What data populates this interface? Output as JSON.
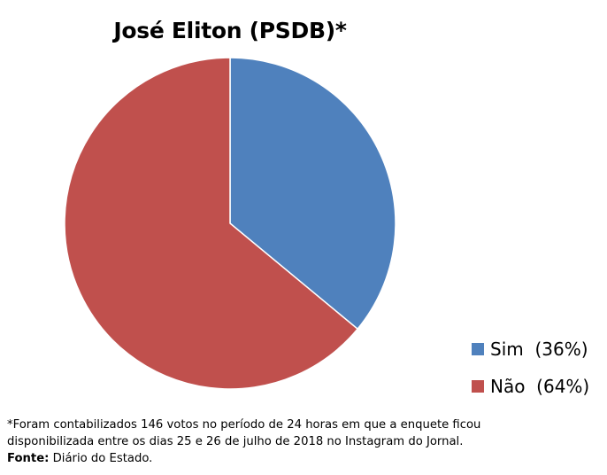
{
  "chart_data": {
    "type": "pie",
    "title": "José Eliton (PSDB)*",
    "slices": [
      {
        "label": "Sim  (36%)",
        "value": 36,
        "color": "#4f81bd"
      },
      {
        "label": "Não  (64%)",
        "value": 64,
        "color": "#c0504d"
      }
    ],
    "legend_position": "bottom-right"
  },
  "footnote": {
    "line1": "*Foram contabilizados 146 votos no período de 24 horas em que a enquete ficou",
    "line2": "disponibilizada entre os dias 25 e 26 de julho de 2018 no Instagram do Jornal.",
    "source_label": "Fonte:",
    "source_text": " Diário do Estado."
  }
}
